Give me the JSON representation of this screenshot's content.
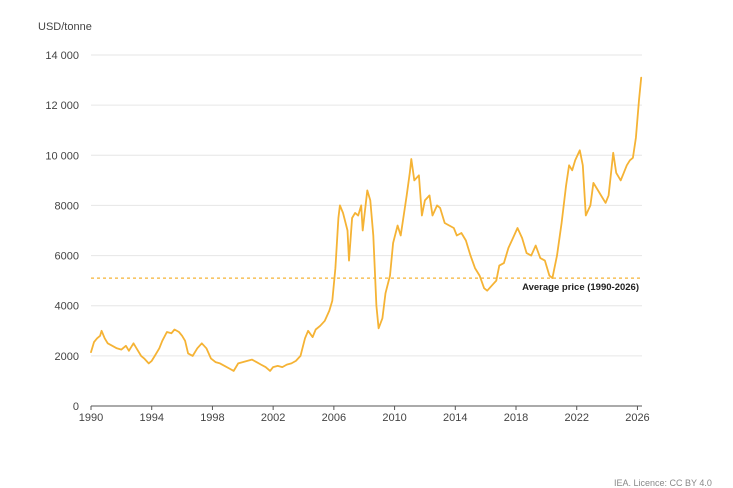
{
  "credit": "IEA. Licence: CC BY 4.0",
  "chart_data": {
    "type": "line",
    "y_unit_label": "USD/tonne",
    "xlim": [
      1990,
      2026.3
    ],
    "ylim": [
      0,
      14000
    ],
    "x_ticks": [
      1990,
      1994,
      1998,
      2002,
      2006,
      2010,
      2014,
      2018,
      2022,
      2026
    ],
    "y_ticks": [
      0,
      2000,
      4000,
      6000,
      8000,
      10000,
      12000,
      14000
    ],
    "y_tick_labels": [
      "0",
      "2000",
      "4000",
      "6000",
      "8000",
      "10 000",
      "12 000",
      "14 000"
    ],
    "grid": "horizontal",
    "line_color": "#F5B335",
    "average": {
      "label": "Average price (1990-2026)",
      "value": 5100,
      "color": "#F5B335"
    },
    "series": [
      {
        "points": [
          [
            1990.0,
            2150
          ],
          [
            1990.2,
            2550
          ],
          [
            1990.4,
            2700
          ],
          [
            1990.6,
            2800
          ],
          [
            1990.7,
            3000
          ],
          [
            1990.9,
            2700
          ],
          [
            1991.1,
            2500
          ],
          [
            1991.4,
            2400
          ],
          [
            1991.7,
            2300
          ],
          [
            1992.0,
            2250
          ],
          [
            1992.3,
            2400
          ],
          [
            1992.5,
            2200
          ],
          [
            1992.8,
            2500
          ],
          [
            1993.0,
            2300
          ],
          [
            1993.3,
            2000
          ],
          [
            1993.5,
            1900
          ],
          [
            1993.8,
            1700
          ],
          [
            1994.0,
            1800
          ],
          [
            1994.2,
            2000
          ],
          [
            1994.5,
            2300
          ],
          [
            1994.7,
            2600
          ],
          [
            1995.0,
            2950
          ],
          [
            1995.3,
            2900
          ],
          [
            1995.5,
            3050
          ],
          [
            1995.8,
            2950
          ],
          [
            1996.0,
            2800
          ],
          [
            1996.2,
            2600
          ],
          [
            1996.4,
            2100
          ],
          [
            1996.7,
            2000
          ],
          [
            1997.0,
            2300
          ],
          [
            1997.3,
            2500
          ],
          [
            1997.6,
            2300
          ],
          [
            1997.9,
            1900
          ],
          [
            1998.2,
            1750
          ],
          [
            1998.5,
            1700
          ],
          [
            1998.8,
            1600
          ],
          [
            1999.1,
            1500
          ],
          [
            1999.4,
            1400
          ],
          [
            1999.7,
            1700
          ],
          [
            2000.0,
            1750
          ],
          [
            2000.3,
            1800
          ],
          [
            2000.6,
            1850
          ],
          [
            2000.9,
            1750
          ],
          [
            2001.2,
            1650
          ],
          [
            2001.5,
            1550
          ],
          [
            2001.8,
            1400
          ],
          [
            2002.0,
            1550
          ],
          [
            2002.3,
            1600
          ],
          [
            2002.6,
            1550
          ],
          [
            2002.9,
            1650
          ],
          [
            2003.2,
            1700
          ],
          [
            2003.5,
            1800
          ],
          [
            2003.8,
            2000
          ],
          [
            2004.1,
            2700
          ],
          [
            2004.3,
            3000
          ],
          [
            2004.6,
            2750
          ],
          [
            2004.8,
            3050
          ],
          [
            2005.1,
            3200
          ],
          [
            2005.4,
            3400
          ],
          [
            2005.7,
            3800
          ],
          [
            2005.9,
            4200
          ],
          [
            2006.1,
            5500
          ],
          [
            2006.3,
            7500
          ],
          [
            2006.4,
            8000
          ],
          [
            2006.6,
            7700
          ],
          [
            2006.9,
            7000
          ],
          [
            2007.0,
            5800
          ],
          [
            2007.2,
            7500
          ],
          [
            2007.4,
            7700
          ],
          [
            2007.6,
            7600
          ],
          [
            2007.8,
            8000
          ],
          [
            2007.9,
            7000
          ],
          [
            2008.2,
            8600
          ],
          [
            2008.4,
            8200
          ],
          [
            2008.6,
            6800
          ],
          [
            2008.8,
            4000
          ],
          [
            2008.95,
            3100
          ],
          [
            2009.2,
            3500
          ],
          [
            2009.4,
            4500
          ],
          [
            2009.7,
            5200
          ],
          [
            2009.9,
            6500
          ],
          [
            2010.2,
            7200
          ],
          [
            2010.4,
            6800
          ],
          [
            2010.6,
            7600
          ],
          [
            2010.8,
            8400
          ],
          [
            2011.0,
            9300
          ],
          [
            2011.1,
            9850
          ],
          [
            2011.3,
            9000
          ],
          [
            2011.6,
            9200
          ],
          [
            2011.8,
            7600
          ],
          [
            2012.0,
            8200
          ],
          [
            2012.3,
            8400
          ],
          [
            2012.5,
            7600
          ],
          [
            2012.8,
            8000
          ],
          [
            2013.0,
            7900
          ],
          [
            2013.3,
            7300
          ],
          [
            2013.6,
            7200
          ],
          [
            2013.9,
            7100
          ],
          [
            2014.1,
            6800
          ],
          [
            2014.4,
            6900
          ],
          [
            2014.7,
            6600
          ],
          [
            2015.0,
            6000
          ],
          [
            2015.3,
            5500
          ],
          [
            2015.6,
            5200
          ],
          [
            2015.9,
            4700
          ],
          [
            2016.1,
            4600
          ],
          [
            2016.4,
            4800
          ],
          [
            2016.7,
            5000
          ],
          [
            2016.9,
            5600
          ],
          [
            2017.2,
            5700
          ],
          [
            2017.5,
            6300
          ],
          [
            2017.8,
            6700
          ],
          [
            2018.1,
            7100
          ],
          [
            2018.4,
            6700
          ],
          [
            2018.7,
            6100
          ],
          [
            2019.0,
            6000
          ],
          [
            2019.3,
            6400
          ],
          [
            2019.6,
            5900
          ],
          [
            2019.9,
            5800
          ],
          [
            2020.2,
            5200
          ],
          [
            2020.4,
            5100
          ],
          [
            2020.7,
            6000
          ],
          [
            2021.0,
            7300
          ],
          [
            2021.3,
            8800
          ],
          [
            2021.5,
            9600
          ],
          [
            2021.7,
            9400
          ],
          [
            2021.9,
            9800
          ],
          [
            2022.2,
            10200
          ],
          [
            2022.4,
            9600
          ],
          [
            2022.6,
            7600
          ],
          [
            2022.9,
            8000
          ],
          [
            2023.1,
            8900
          ],
          [
            2023.4,
            8600
          ],
          [
            2023.7,
            8300
          ],
          [
            2023.9,
            8100
          ],
          [
            2024.1,
            8400
          ],
          [
            2024.3,
            9500
          ],
          [
            2024.4,
            10100
          ],
          [
            2024.6,
            9300
          ],
          [
            2024.9,
            9000
          ],
          [
            2025.1,
            9300
          ],
          [
            2025.3,
            9600
          ],
          [
            2025.5,
            9800
          ],
          [
            2025.7,
            9900
          ],
          [
            2025.9,
            10700
          ],
          [
            2026.1,
            12200
          ],
          [
            2026.25,
            13100
          ]
        ]
      }
    ]
  }
}
